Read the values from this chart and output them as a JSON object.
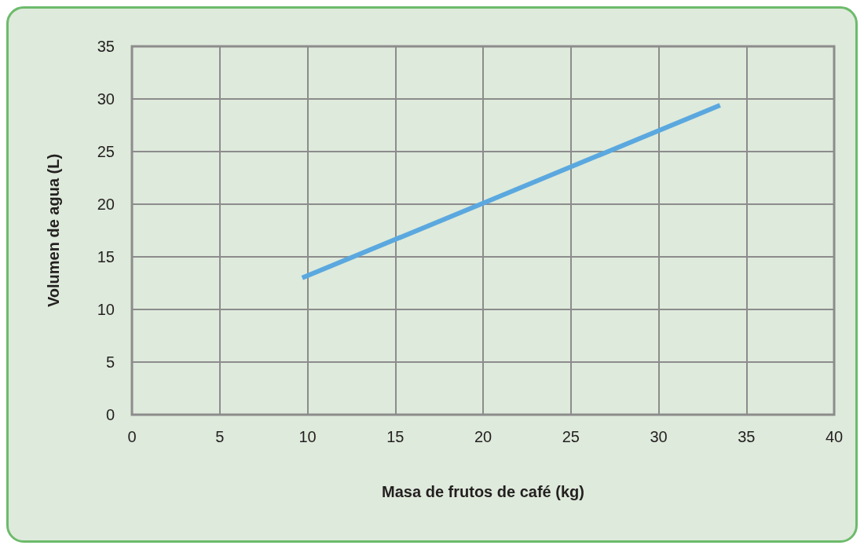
{
  "chart_data": {
    "type": "line",
    "xlabel": "Masa de frutos de café (kg)",
    "ylabel": "Volumen de agua (L)",
    "series": [
      {
        "color": "#5aa8df",
        "x": [
          9.7,
          20,
          33.5
        ],
        "values": [
          13,
          20.1,
          29.4
        ]
      }
    ],
    "xlim": [
      0,
      40
    ],
    "xticks": [
      0,
      5,
      10,
      15,
      20,
      25,
      30,
      35,
      40
    ],
    "ylim": [
      0,
      35
    ],
    "yticks": [
      0,
      5,
      10,
      15,
      20,
      25,
      30,
      35
    ],
    "grid": true,
    "marker": "none",
    "line_style": "solid"
  }
}
